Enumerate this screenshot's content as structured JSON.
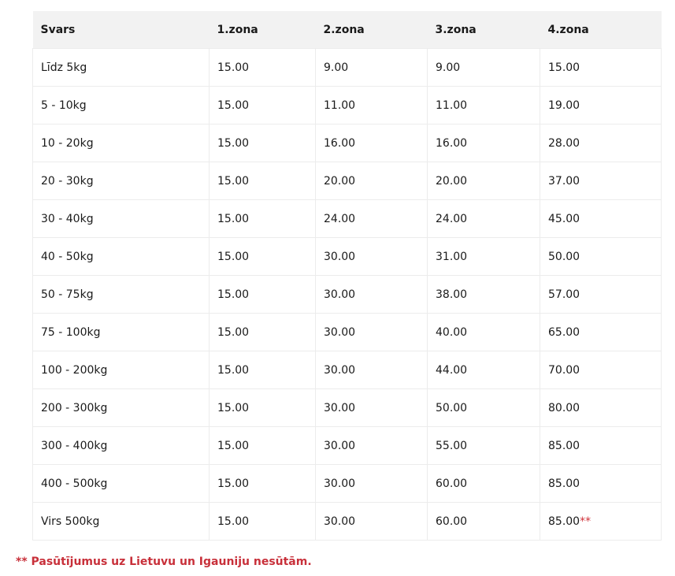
{
  "table": {
    "headers": [
      "Svars",
      "1.zona",
      "2.zona",
      "3.zona",
      "4.zona"
    ],
    "rows": [
      [
        "Līdz 5kg",
        "15.00",
        "9.00",
        "9.00",
        "15.00"
      ],
      [
        "5 - 10kg",
        "15.00",
        "11.00",
        "11.00",
        "19.00"
      ],
      [
        "10 - 20kg",
        "15.00",
        "16.00",
        "16.00",
        "28.00"
      ],
      [
        "20 - 30kg",
        "15.00",
        "20.00",
        "20.00",
        "37.00"
      ],
      [
        "30 - 40kg",
        "15.00",
        "24.00",
        "24.00",
        "45.00"
      ],
      [
        "40 - 50kg",
        "15.00",
        "30.00",
        "31.00",
        "50.00"
      ],
      [
        "50 - 75kg",
        "15.00",
        "30.00",
        "38.00",
        "57.00"
      ],
      [
        "75 - 100kg",
        "15.00",
        "30.00",
        "40.00",
        "65.00"
      ],
      [
        "100 - 200kg",
        "15.00",
        "30.00",
        "44.00",
        "70.00"
      ],
      [
        "200 - 300kg",
        "15.00",
        "30.00",
        "50.00",
        "80.00"
      ],
      [
        "300 - 400kg",
        "15.00",
        "30.00",
        "55.00",
        "85.00"
      ],
      [
        "400 - 500kg",
        "15.00",
        "30.00",
        "60.00",
        "85.00"
      ],
      [
        "Virs 500kg",
        "15.00",
        "30.00",
        "60.00",
        "85.00"
      ]
    ],
    "last_cell_marker": "**"
  },
  "footnote": "** Pasūtījumus uz Lietuvu un Igauniju nesūtām.",
  "colors": {
    "accent": "#d0323a",
    "header_bg": "#f2f2f2"
  }
}
